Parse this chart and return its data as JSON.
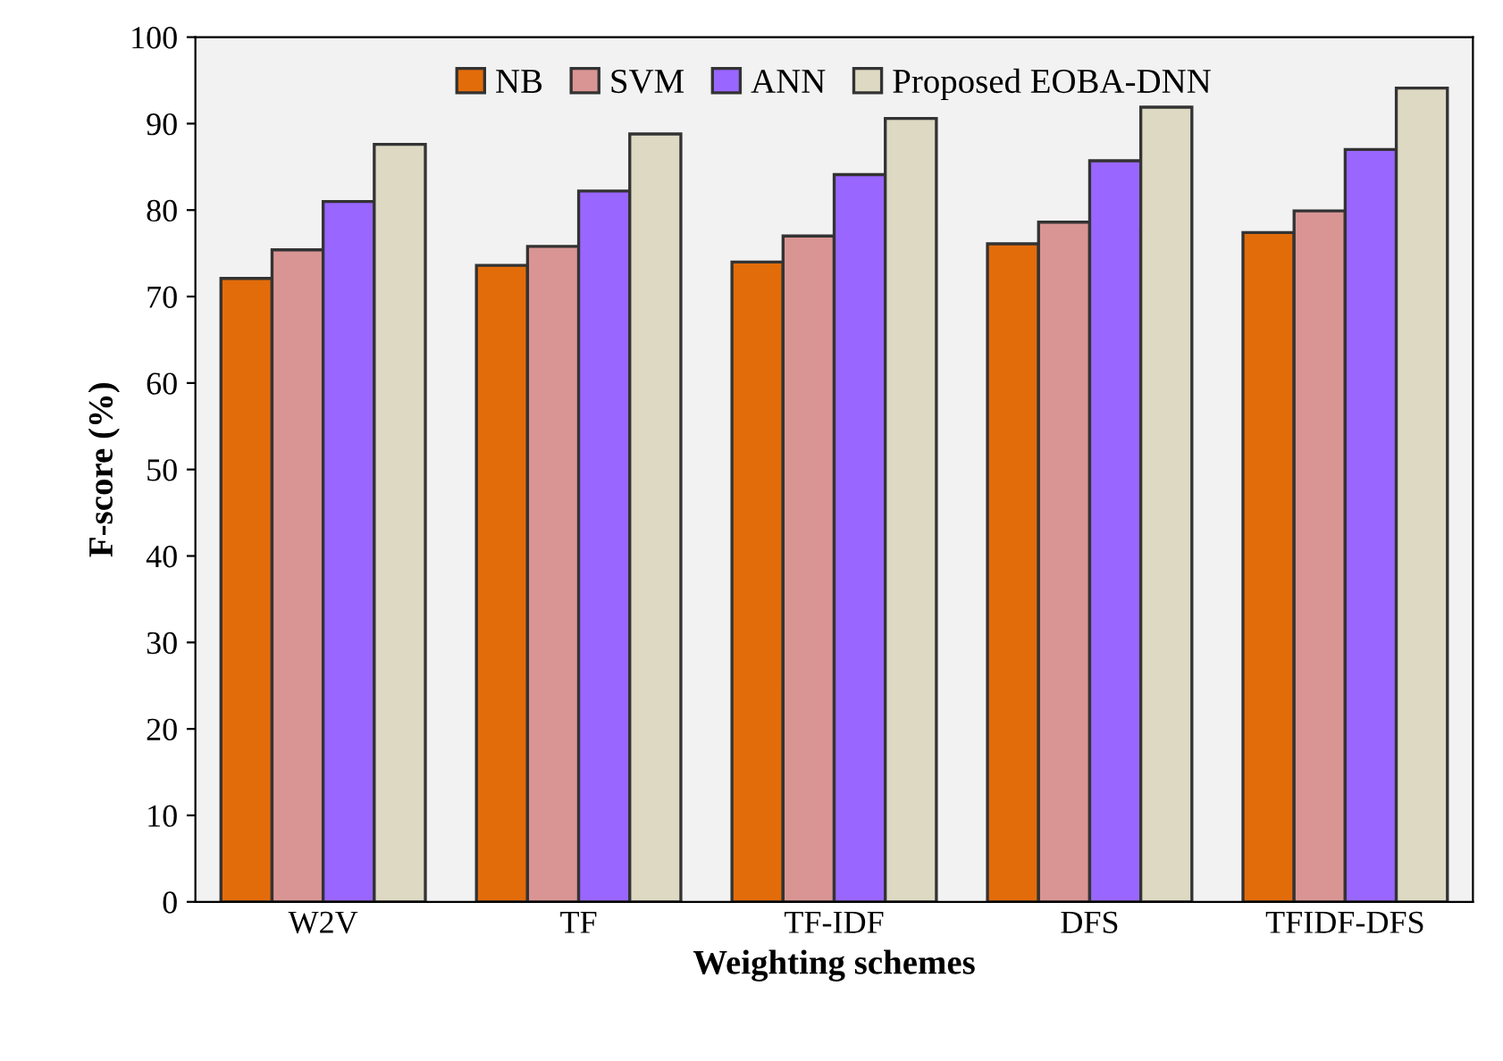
{
  "chart_data": {
    "type": "bar",
    "xlabel": "Weighting schemes",
    "ylabel": "F-score (%)",
    "categories": [
      "W2V",
      "TF",
      "TF-IDF",
      "DFS",
      "TFIDF-DFS"
    ],
    "series": [
      {
        "name": "NB",
        "color": "#e36c0a",
        "values": [
          72.1,
          73.6,
          74.0,
          76.1,
          77.4
        ]
      },
      {
        "name": "SVM",
        "color": "#d99594",
        "values": [
          75.4,
          75.8,
          77.0,
          78.6,
          79.9
        ]
      },
      {
        "name": "ANN",
        "color": "#9966ff",
        "values": [
          81.0,
          82.2,
          84.1,
          85.7,
          87.0
        ]
      },
      {
        "name": "Proposed EOBA-DNN",
        "color": "#ddd9c3",
        "values": [
          87.6,
          88.8,
          90.6,
          91.9,
          94.1
        ]
      }
    ],
    "ylim": [
      0,
      100
    ],
    "yticks": [
      0,
      10,
      20,
      30,
      40,
      50,
      60,
      70,
      80,
      90,
      100
    ],
    "grid": false,
    "legend": "top"
  }
}
